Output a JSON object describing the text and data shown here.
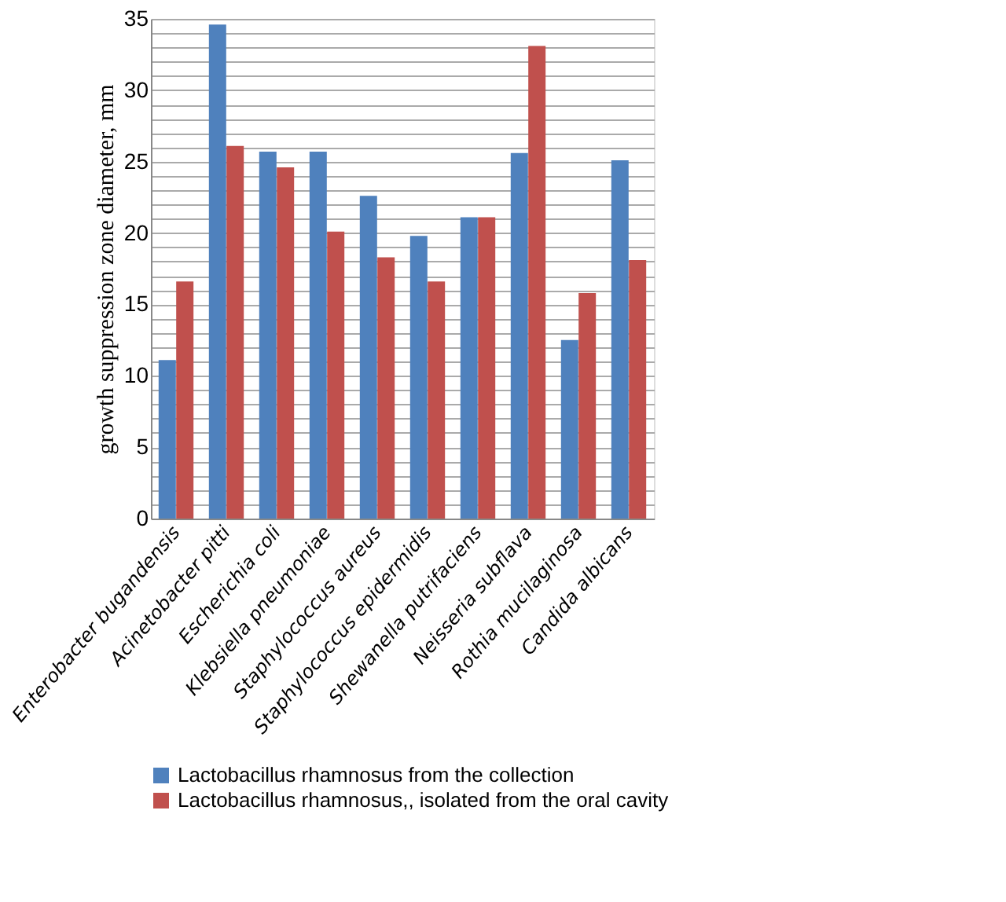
{
  "chart_data": {
    "type": "bar",
    "ylabel": "growth suppression zone diameter,  mm",
    "categories": [
      "Enterobacter bugandensis",
      "Acinetobacter pitti",
      "Escherichia coli",
      "Klebsiella pneumoniae",
      "Staphylococcus aureus",
      "Staphylococcus epidermidis",
      "Shewanella putrifaciens",
      "Neisseria subflava",
      "Rothia mucilaginosa",
      "Candida albicans"
    ],
    "series": [
      {
        "name": "Lactobacillus rhamnosus from the collection",
        "color": "#4f81bd",
        "values": [
          11.1,
          34.6,
          25.7,
          25.7,
          22.6,
          19.8,
          21.1,
          25.6,
          12.5,
          25.1
        ]
      },
      {
        "name": "Lactobacillus rhamnosus,, isolated from the oral cavity",
        "color": "#c0504d",
        "values": [
          16.6,
          26.1,
          24.6,
          20.1,
          18.3,
          16.6,
          21.1,
          33.1,
          15.8,
          18.1
        ]
      }
    ],
    "ylim": [
      0,
      35
    ],
    "yticks": [
      0,
      {
        "value": 1,
        "label": null
      },
      {
        "value": 2,
        "label": null
      },
      {
        "value": 3,
        "label": null
      },
      {
        "value": 4,
        "label": null
      },
      5,
      {
        "value": 6,
        "label": null
      },
      {
        "value": 7,
        "label": null
      },
      {
        "value": 8,
        "label": null
      },
      {
        "value": 9,
        "label": null
      },
      10,
      {
        "value": 11,
        "label": null
      },
      {
        "value": 12,
        "label": null
      },
      {
        "value": 13,
        "label": null
      },
      {
        "value": 14,
        "label": null
      },
      15,
      {
        "value": 16,
        "label": null
      },
      {
        "value": 17,
        "label": null
      },
      {
        "value": 18,
        "label": null
      },
      {
        "value": 19,
        "label": null
      },
      20,
      {
        "value": 21,
        "label": null
      },
      {
        "value": 22,
        "label": null
      },
      {
        "value": 23,
        "label": null
      },
      {
        "value": 24,
        "label": null
      },
      25,
      {
        "value": 26,
        "label": null
      },
      {
        "value": 27,
        "label": null
      },
      {
        "value": 28,
        "label": null
      },
      {
        "value": 29,
        "label": null
      },
      30,
      {
        "value": 31,
        "label": null
      },
      {
        "value": 32,
        "label": null
      },
      {
        "value": 33,
        "label": null
      },
      {
        "value": 34,
        "label": null
      },
      35
    ],
    "grid": "y",
    "legend": "bottom"
  }
}
